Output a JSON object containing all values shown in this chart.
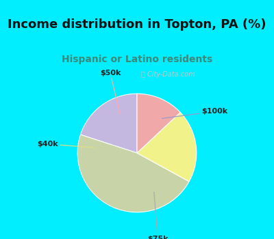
{
  "title": "Income distribution in Topton, PA (%)",
  "subtitle": "Hispanic or Latino residents",
  "slices": [
    {
      "label": "$100k",
      "value": 20,
      "color": "#c4b8e0"
    },
    {
      "label": "$75k",
      "value": 47,
      "color": "#c8d4a8"
    },
    {
      "label": "$40k",
      "value": 20,
      "color": "#f2f28a"
    },
    {
      "label": "$50k",
      "value": 13,
      "color": "#f0a8a8"
    }
  ],
  "bg_color": "#00eeff",
  "chart_bg_color": "#e0f5ec",
  "title_color": "#111111",
  "subtitle_color": "#3a8a7a",
  "watermark": "City-Data.com",
  "watermark_color": "#c0c8c8",
  "startangle": 90,
  "title_fontsize": 13,
  "subtitle_fontsize": 10
}
